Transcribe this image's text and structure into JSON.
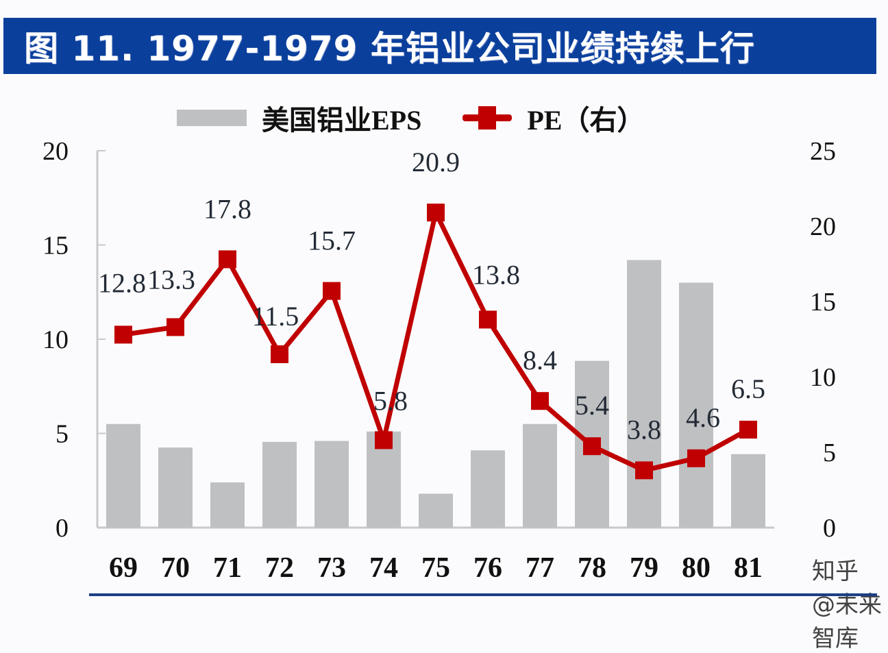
{
  "title": "图 11. 1977-1979 年铝业公司业绩持续上行",
  "legend": {
    "bar_label": "美国铝业EPS",
    "line_label": "PE（右）"
  },
  "watermark": "知乎 @未来智库",
  "colors": {
    "title_bg": "#0a3f9c",
    "bar": "#bfc0c2",
    "line": "#c00000"
  },
  "chart_data": {
    "type": "bar+line",
    "title": "图 11. 1977-1979 年铝业公司业绩持续上行",
    "categories": [
      "69",
      "70",
      "71",
      "72",
      "73",
      "74",
      "75",
      "76",
      "77",
      "78",
      "79",
      "80",
      "81"
    ],
    "series": [
      {
        "name": "美国铝业EPS",
        "type": "bar",
        "axis": "left",
        "values": [
          5.5,
          4.25,
          2.4,
          4.55,
          4.6,
          5.1,
          1.8,
          4.1,
          5.5,
          8.85,
          14.2,
          13.0,
          3.9
        ]
      },
      {
        "name": "PE（右）",
        "type": "line",
        "axis": "right",
        "values": [
          12.8,
          13.3,
          17.8,
          11.5,
          15.7,
          5.8,
          20.9,
          13.8,
          8.4,
          5.4,
          3.8,
          4.6,
          6.5
        ],
        "labels": [
          "12.8",
          "13.3",
          "17.8",
          "11.5",
          "15.7",
          "5.8",
          "20.9",
          "13.8",
          "8.4",
          "5.4",
          "3.8",
          "4.6",
          "6.5"
        ]
      }
    ],
    "left_axis": {
      "ylim": [
        0,
        20
      ],
      "ticks": [
        "0",
        "5",
        "10",
        "15",
        "20"
      ]
    },
    "right_axis": {
      "ylim": [
        0,
        25
      ],
      "ticks": [
        "0",
        "5",
        "10",
        "15",
        "20",
        "25"
      ]
    },
    "xlabel": "",
    "ylabel": "",
    "grid": false,
    "legend_position": "top"
  }
}
